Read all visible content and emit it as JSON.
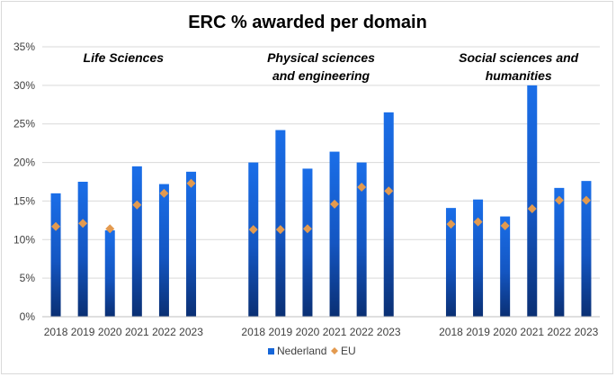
{
  "chart_data": {
    "type": "bar",
    "title": "ERC % awarded per domain",
    "ylim": [
      0,
      35
    ],
    "yticks": [
      0,
      5,
      10,
      15,
      20,
      25,
      30,
      35
    ],
    "ytick_labels": [
      "0%",
      "5%",
      "10%",
      "15%",
      "20%",
      "25%",
      "30%",
      "35%"
    ],
    "grid": true,
    "legend_position": "bottom",
    "years": [
      "2018",
      "2019",
      "2020",
      "2021",
      "2022",
      "2023"
    ],
    "groups": [
      {
        "label_lines": [
          "Life Sciences"
        ],
        "nederland": [
          16.0,
          17.5,
          11.2,
          19.5,
          17.2,
          18.8
        ],
        "eu": [
          11.7,
          12.1,
          11.4,
          14.5,
          16.0,
          17.3
        ]
      },
      {
        "label_lines": [
          "Physical sciences",
          "and engineering"
        ],
        "nederland": [
          20.0,
          24.2,
          19.2,
          21.4,
          20.0,
          26.5
        ],
        "eu": [
          11.3,
          11.3,
          11.4,
          14.6,
          16.8,
          16.3
        ]
      },
      {
        "label_lines": [
          "Social sciences and",
          "humanities"
        ],
        "nederland": [
          14.1,
          15.2,
          13.0,
          30.0,
          16.7,
          17.6
        ],
        "eu": [
          12.0,
          12.3,
          11.8,
          14.0,
          15.1,
          15.1
        ]
      }
    ],
    "series": [
      {
        "name": "Nederland",
        "color": "#1565d8"
      },
      {
        "name": "EU",
        "color": "#e39a4f"
      }
    ]
  }
}
